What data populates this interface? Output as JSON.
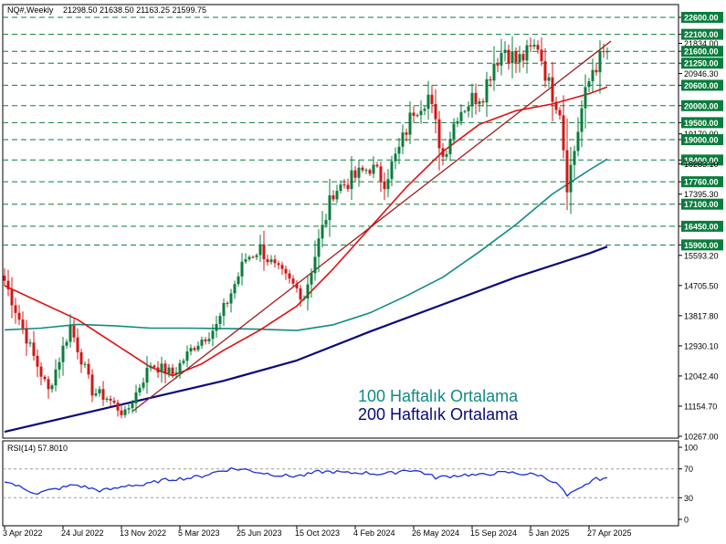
{
  "header": {
    "symbol": "NQ#,Weekly",
    "ohlc": "21298.50 21638.50 21163.25 21599.75"
  },
  "colors": {
    "bull_candle": "#0a7d3c",
    "bear_candle": "#d01818",
    "ma50": "#e01010",
    "ma100": "#0f8a84",
    "ma200": "#0a0a7a",
    "trendline": "#9b1c1c",
    "level_line": "#0a7d3c",
    "level_label_bg": "#0a7d3c",
    "rsi_line": "#1c2fd6"
  },
  "legend": {
    "ma100_label": "100 Haftalık Ortalama",
    "ma200_label": "200 Haftalık Ortalama"
  },
  "rsi": {
    "label": "RSI(14) 57.8010",
    "scale_labels": [
      "100",
      "70",
      "30",
      "0"
    ],
    "scale_values": [
      100,
      70,
      30,
      0
    ],
    "guide_levels": [
      70,
      30
    ]
  },
  "chart_data": {
    "type": "candlestick",
    "timeframe": "Weekly",
    "price_range": [
      10267,
      22900
    ],
    "price_axis_labels": [
      "22600.00",
      "22100.00",
      "21834.00",
      "21600.00",
      "21250.00",
      "20946.30",
      "20600.00",
      "20000.00",
      "19500.00",
      "19170.00",
      "19000.00",
      "18400.00",
      "18283.10",
      "17760.00",
      "17395.30",
      "17100.00",
      "16450.00",
      "15900.00",
      "15593.20",
      "14705.50",
      "13817.80",
      "12930.10",
      "12042.40",
      "11154.70",
      "10267.00"
    ],
    "price_axis_values": [
      22600,
      22100,
      21834,
      21600,
      21250,
      20946.3,
      20600,
      20000,
      19500,
      19170,
      19000,
      18400,
      18283.1,
      17760,
      17395.3,
      17100,
      16450,
      15900,
      15593.2,
      14705.5,
      13817.8,
      12930.1,
      12042.4,
      11154.7,
      10267
    ],
    "highlighted_levels": [
      22600,
      22100,
      21600,
      21250,
      20600,
      20000,
      19500,
      19000,
      18400,
      17760,
      17100,
      16450,
      15900
    ],
    "x_axis_labels": [
      "3 Apr 2022",
      "24 Jul 2022",
      "13 Nov 2022",
      "5 Mar 2023",
      "25 Jun 2023",
      "15 Oct 2023",
      "4 Feb 2024",
      "26 May 2024",
      "15 Sep 2024",
      "5 Jan 2025",
      "27 Apr 2025"
    ],
    "x_axis_label_bar_index": [
      0,
      16,
      32,
      48,
      64,
      80,
      96,
      112,
      128,
      144,
      160
    ],
    "bar_count": 166,
    "anchors": [
      [
        0,
        14850
      ],
      [
        8,
        12600
      ],
      [
        12,
        11600
      ],
      [
        18,
        13500
      ],
      [
        24,
        11600
      ],
      [
        28,
        11400
      ],
      [
        33,
        10900
      ],
      [
        40,
        12400
      ],
      [
        46,
        12100
      ],
      [
        52,
        12950
      ],
      [
        58,
        13500
      ],
      [
        66,
        15500
      ],
      [
        70,
        15800
      ],
      [
        74,
        15200
      ],
      [
        78,
        14800
      ],
      [
        82,
        14400
      ],
      [
        86,
        16000
      ],
      [
        90,
        17500
      ],
      [
        96,
        17900
      ],
      [
        100,
        18200
      ],
      [
        104,
        17800
      ],
      [
        108,
        18700
      ],
      [
        112,
        19900
      ],
      [
        116,
        20300
      ],
      [
        120,
        18500
      ],
      [
        124,
        19800
      ],
      [
        128,
        20200
      ],
      [
        131,
        20400
      ],
      [
        134,
        21300
      ],
      [
        137,
        21700
      ],
      [
        140,
        21300
      ],
      [
        143,
        21500
      ],
      [
        146,
        21800
      ],
      [
        149,
        20600
      ],
      [
        152,
        19900
      ],
      [
        154,
        17700
      ],
      [
        156,
        18700
      ],
      [
        158,
        19900
      ],
      [
        161,
        21100
      ],
      [
        165,
        21599.75
      ]
    ],
    "moving_averages": [
      {
        "name": "100 Haftalık Ortalama",
        "period": 100,
        "points": [
          [
            0,
            13400
          ],
          [
            10,
            13450
          ],
          [
            20,
            13560
          ],
          [
            30,
            13520
          ],
          [
            40,
            13450
          ],
          [
            50,
            13450
          ],
          [
            60,
            13440
          ],
          [
            70,
            13420
          ],
          [
            80,
            13380
          ],
          [
            90,
            13550
          ],
          [
            100,
            13900
          ],
          [
            110,
            14400
          ],
          [
            120,
            14950
          ],
          [
            130,
            15700
          ],
          [
            140,
            16500
          ],
          [
            150,
            17400
          ],
          [
            160,
            18100
          ],
          [
            165,
            18430
          ]
        ]
      },
      {
        "name": "200 Haftalık Ortalama",
        "period": 200,
        "points": [
          [
            0,
            10400
          ],
          [
            20,
            10900
          ],
          [
            40,
            11400
          ],
          [
            60,
            11900
          ],
          [
            80,
            12500
          ],
          [
            100,
            13350
          ],
          [
            120,
            14150
          ],
          [
            140,
            14950
          ],
          [
            160,
            15650
          ],
          [
            165,
            15850
          ]
        ]
      },
      {
        "name": "50",
        "period": 50,
        "points": [
          [
            0,
            14700
          ],
          [
            10,
            14200
          ],
          [
            20,
            13700
          ],
          [
            30,
            13000
          ],
          [
            40,
            12300
          ],
          [
            46,
            12050
          ],
          [
            54,
            12400
          ],
          [
            60,
            12800
          ],
          [
            70,
            13400
          ],
          [
            80,
            14100
          ],
          [
            90,
            15200
          ],
          [
            100,
            16400
          ],
          [
            110,
            17600
          ],
          [
            120,
            18650
          ],
          [
            130,
            19450
          ],
          [
            140,
            19850
          ],
          [
            150,
            20050
          ],
          [
            160,
            20350
          ],
          [
            165,
            20550
          ]
        ]
      }
    ],
    "trendline": {
      "start": [
        35,
        11000
      ],
      "end": [
        166,
        21900
      ]
    },
    "rsi_points": [
      [
        0,
        54
      ],
      [
        5,
        43
      ],
      [
        9,
        36
      ],
      [
        12,
        40
      ],
      [
        16,
        44
      ],
      [
        19,
        48
      ],
      [
        22,
        45
      ],
      [
        26,
        40
      ],
      [
        30,
        42
      ],
      [
        34,
        48
      ],
      [
        38,
        47
      ],
      [
        42,
        53
      ],
      [
        46,
        56
      ],
      [
        50,
        57
      ],
      [
        54,
        60
      ],
      [
        58,
        66
      ],
      [
        62,
        70
      ],
      [
        66,
        69
      ],
      [
        70,
        65
      ],
      [
        74,
        62
      ],
      [
        78,
        60
      ],
      [
        82,
        61
      ],
      [
        86,
        66
      ],
      [
        90,
        66
      ],
      [
        94,
        64
      ],
      [
        98,
        65
      ],
      [
        102,
        63
      ],
      [
        106,
        64
      ],
      [
        110,
        69
      ],
      [
        114,
        66
      ],
      [
        118,
        58
      ],
      [
        122,
        60
      ],
      [
        126,
        62
      ],
      [
        130,
        61
      ],
      [
        134,
        64
      ],
      [
        138,
        65
      ],
      [
        142,
        63
      ],
      [
        146,
        62
      ],
      [
        149,
        56
      ],
      [
        152,
        46
      ],
      [
        154,
        32
      ],
      [
        156,
        38
      ],
      [
        158,
        43
      ],
      [
        161,
        55
      ],
      [
        165,
        57.8
      ]
    ]
  }
}
